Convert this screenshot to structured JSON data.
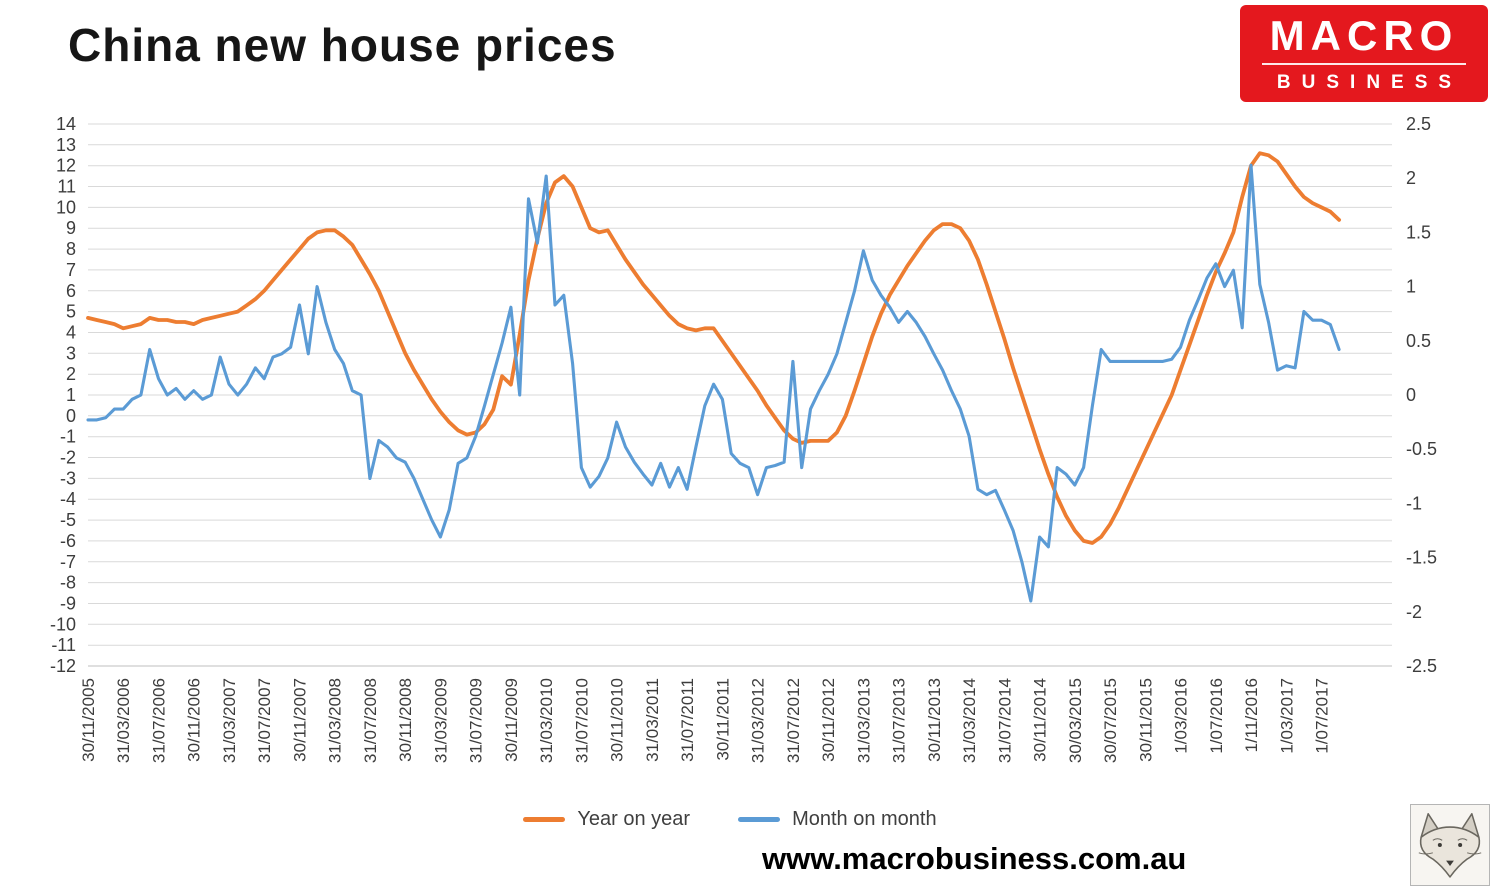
{
  "title": "China new house prices",
  "logo": {
    "line1": "MACRO",
    "line2": "BUSINESS",
    "bg_color": "#e4181e"
  },
  "footer": {
    "url": "www.macrobusiness.com.au"
  },
  "legend": [
    {
      "label": "Year on year",
      "color": "#ED7D31"
    },
    {
      "label": "Month on month",
      "color": "#5B9BD5"
    }
  ],
  "chart_data": {
    "type": "line",
    "title": "China new house prices",
    "grid": "horizontal",
    "legend_position": "bottom",
    "left_axis": {
      "min": -12,
      "max": 14,
      "tick_step": 1
    },
    "right_axis": {
      "min": -2.5,
      "max": 2.5,
      "tick_step": 0.5,
      "tick_labels": [
        "2.5",
        "2",
        "1.5",
        "1",
        "0.5",
        "0",
        "-0.5",
        "-1",
        "-1.5",
        "-2",
        "-2.5"
      ]
    },
    "x_label_every": 4,
    "x_labels": [
      "30/11/2005",
      "31/03/2006",
      "31/07/2006",
      "30/11/2006",
      "31/03/2007",
      "31/07/2007",
      "30/11/2007",
      "31/03/2008",
      "31/07/2008",
      "30/11/2008",
      "31/03/2009",
      "31/07/2009",
      "30/11/2009",
      "31/03/2010",
      "31/07/2010",
      "30/11/2010",
      "31/03/2011",
      "31/07/2011",
      "30/11/2011",
      "31/03/2012",
      "31/07/2012",
      "30/11/2012",
      "31/03/2013",
      "31/07/2013",
      "30/11/2013",
      "31/03/2014",
      "31/07/2014",
      "30/11/2014",
      "30/03/2015",
      "30/07/2015",
      "30/11/2015",
      "1/03/2016",
      "1/07/2016",
      "1/11/2016",
      "1/03/2017",
      "1/07/2017"
    ],
    "series": [
      {
        "name": "Year on year",
        "axis": "left",
        "color": "#ED7D31",
        "values": [
          4.7,
          4.6,
          4.5,
          4.4,
          4.2,
          4.3,
          4.4,
          4.7,
          4.6,
          4.6,
          4.5,
          4.5,
          4.4,
          4.6,
          4.7,
          4.8,
          4.9,
          5.0,
          5.3,
          5.6,
          6.0,
          6.5,
          7.0,
          7.5,
          8.0,
          8.5,
          8.8,
          8.9,
          8.9,
          8.6,
          8.2,
          7.5,
          6.8,
          6.0,
          5.0,
          4.0,
          3.0,
          2.2,
          1.5,
          0.8,
          0.2,
          -0.3,
          -0.7,
          -0.9,
          -0.8,
          -0.4,
          0.3,
          1.9,
          1.5,
          3.9,
          6.5,
          8.5,
          10.2,
          11.2,
          11.5,
          11.0,
          10.0,
          9.0,
          8.8,
          8.9,
          8.2,
          7.5,
          6.9,
          6.3,
          5.8,
          5.3,
          4.8,
          4.4,
          4.2,
          4.1,
          4.2,
          4.2,
          3.6,
          3.0,
          2.4,
          1.8,
          1.2,
          0.5,
          -0.1,
          -0.7,
          -1.1,
          -1.3,
          -1.2,
          -1.2,
          -1.2,
          -0.8,
          0.0,
          1.2,
          2.5,
          3.8,
          4.9,
          5.8,
          6.5,
          7.2,
          7.8,
          8.4,
          8.9,
          9.2,
          9.2,
          9.0,
          8.4,
          7.5,
          6.3,
          5.0,
          3.7,
          2.3,
          1.0,
          -0.3,
          -1.6,
          -2.8,
          -3.9,
          -4.8,
          -5.5,
          -6.0,
          -6.1,
          -5.8,
          -5.2,
          -4.4,
          -3.5,
          -2.6,
          -1.7,
          -0.8,
          0.1,
          1.0,
          2.2,
          3.4,
          4.6,
          5.8,
          6.9,
          7.8,
          8.8,
          10.5,
          12.0,
          12.6,
          12.5,
          12.2,
          11.6,
          11.0,
          10.5,
          10.2,
          10.0,
          9.8,
          9.4
        ]
      },
      {
        "name": "Month on month",
        "axis": "right",
        "color": "#5B9BD5",
        "values": [
          -0.23,
          -0.23,
          -0.21,
          -0.13,
          -0.13,
          -0.04,
          0.0,
          0.42,
          0.15,
          0.0,
          0.06,
          -0.04,
          0.04,
          -0.04,
          0.0,
          0.35,
          0.1,
          0.0,
          0.1,
          0.25,
          0.15,
          0.35,
          0.38,
          0.44,
          0.83,
          0.38,
          1.0,
          0.67,
          0.42,
          0.29,
          0.04,
          0.0,
          -0.77,
          -0.42,
          -0.48,
          -0.58,
          -0.62,
          -0.77,
          -0.96,
          -1.15,
          -1.31,
          -1.06,
          -0.63,
          -0.58,
          -0.38,
          -0.1,
          0.19,
          0.48,
          0.81,
          0.0,
          1.81,
          1.4,
          2.02,
          0.83,
          0.92,
          0.29,
          -0.67,
          -0.85,
          -0.75,
          -0.58,
          -0.25,
          -0.48,
          -0.62,
          -0.73,
          -0.83,
          -0.63,
          -0.85,
          -0.67,
          -0.87,
          -0.48,
          -0.1,
          0.1,
          -0.04,
          -0.54,
          -0.63,
          -0.67,
          -0.92,
          -0.67,
          -0.65,
          -0.62,
          0.31,
          -0.67,
          -0.13,
          0.04,
          0.19,
          0.38,
          0.67,
          0.96,
          1.33,
          1.06,
          0.92,
          0.81,
          0.67,
          0.77,
          0.67,
          0.54,
          0.38,
          0.23,
          0.04,
          -0.13,
          -0.38,
          -0.87,
          -0.92,
          -0.88,
          -1.06,
          -1.25,
          -1.54,
          -1.9,
          -1.31,
          -1.4,
          -0.67,
          -0.73,
          -0.83,
          -0.67,
          -0.1,
          0.42,
          0.31,
          0.31,
          0.31,
          0.31,
          0.31,
          0.31,
          0.31,
          0.33,
          0.44,
          0.69,
          0.88,
          1.08,
          1.21,
          1.0,
          1.15,
          0.62,
          2.12,
          1.02,
          0.67,
          0.23,
          0.27,
          0.25,
          0.77,
          0.69,
          0.69,
          0.65,
          0.42
        ]
      }
    ]
  }
}
